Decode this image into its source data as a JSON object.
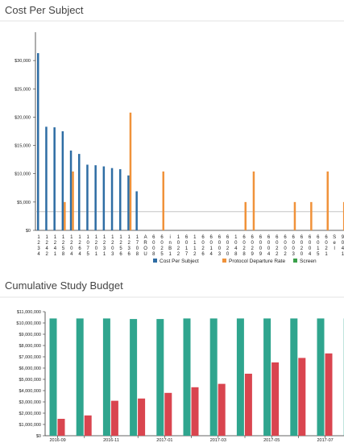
{
  "chart_data": [
    {
      "type": "bar",
      "title": "Cost Per Subject",
      "categories": [
        "1234",
        "1242",
        "1241",
        "1258",
        "1204",
        "1264",
        "1075",
        "1201",
        "1231",
        "1203",
        "1256",
        "1236",
        "1708",
        "AROU",
        "6008",
        "6025",
        "inB1",
        "1022",
        "6017",
        "1112",
        "6026",
        "6014",
        "6003",
        "6020",
        "1048",
        "6028",
        "6029",
        "6009",
        "6004",
        "6022",
        "6002",
        "6003",
        "6020",
        "6004",
        "6015",
        "6021",
        "Sel",
        "9041"
      ],
      "series": [
        {
          "name": "Cost Per Subject",
          "color": "#2e6da4",
          "values": [
            31300,
            18300,
            18200,
            17500,
            14100,
            13500,
            11600,
            11500,
            11300,
            11000,
            10800,
            9700,
            6900,
            null,
            null,
            null,
            null,
            null,
            null,
            null,
            null,
            null,
            null,
            null,
            null,
            null,
            null,
            null,
            null,
            null,
            null,
            null,
            null,
            null,
            null,
            null,
            null,
            null
          ]
        },
        {
          "name": "Protocol Departure Rate",
          "color": "#f0923a",
          "values": [
            null,
            null,
            null,
            5000,
            10400,
            null,
            null,
            null,
            null,
            null,
            null,
            20800,
            null,
            null,
            null,
            10400,
            null,
            null,
            null,
            null,
            null,
            null,
            null,
            null,
            null,
            5000,
            10400,
            null,
            null,
            null,
            null,
            5000,
            null,
            5000,
            null,
            10400,
            null,
            5000
          ]
        },
        {
          "name": "Screen",
          "color": "#3aa04a",
          "values": [
            null,
            null,
            null,
            null,
            null,
            null,
            null,
            null,
            null,
            null,
            null,
            null,
            null,
            null,
            null,
            null,
            null,
            null,
            null,
            null,
            null,
            null,
            null,
            null,
            null,
            null,
            null,
            null,
            null,
            null,
            null,
            null,
            null,
            null,
            null,
            null,
            null,
            null
          ]
        }
      ],
      "reference_line": 3300,
      "ylim": [
        0,
        35000
      ],
      "yticks": [
        {
          "value": 0,
          "label": "$0"
        },
        {
          "value": 5000,
          "label": "$5,000"
        },
        {
          "value": 10000,
          "label": "$10,000"
        },
        {
          "value": 15000,
          "label": "$15,000"
        },
        {
          "value": 20000,
          "label": "$20,000"
        },
        {
          "value": 25000,
          "label": "$25,000"
        },
        {
          "value": 30000,
          "label": "$30,000"
        }
      ]
    },
    {
      "type": "bar",
      "title": "Cumulative Study Budget",
      "categories": [
        "2016-09",
        null,
        "2016-11",
        null,
        "2017-01",
        null,
        "2017-03",
        null,
        "2017-05",
        null,
        "2017-07",
        null
      ],
      "series": [
        {
          "name": null,
          "color": "#2fa58e",
          "values": [
            10400000,
            10400000,
            10400000,
            10350000,
            10350000,
            10400000,
            10400000,
            10400000,
            10400000,
            10400000,
            10400000,
            10400000
          ]
        },
        {
          "name": null,
          "color": "#d9454f",
          "values": [
            1500000,
            1800000,
            3100000,
            3300000,
            3800000,
            4300000,
            4600000,
            5500000,
            6500000,
            6900000,
            7300000,
            null
          ]
        }
      ],
      "ylim": [
        0,
        11000000
      ],
      "yticks": [
        {
          "value": 0,
          "label": "$0"
        },
        {
          "value": 1000000,
          "label": "$1,000,000"
        },
        {
          "value": 2000000,
          "label": "$2,000,000"
        },
        {
          "value": 3000000,
          "label": "$3,000,000"
        },
        {
          "value": 4000000,
          "label": "$4,000,000"
        },
        {
          "value": 5000000,
          "label": "$5,000,000"
        },
        {
          "value": 6000000,
          "label": "$6,000,000"
        },
        {
          "value": 7000000,
          "label": "$7,000,000"
        },
        {
          "value": 8000000,
          "label": "$8,000,000"
        },
        {
          "value": 9000000,
          "label": "$9,000,000"
        },
        {
          "value": 10000000,
          "label": "$10,000,000"
        },
        {
          "value": 11000000,
          "label": "$11,000,000"
        }
      ]
    }
  ]
}
